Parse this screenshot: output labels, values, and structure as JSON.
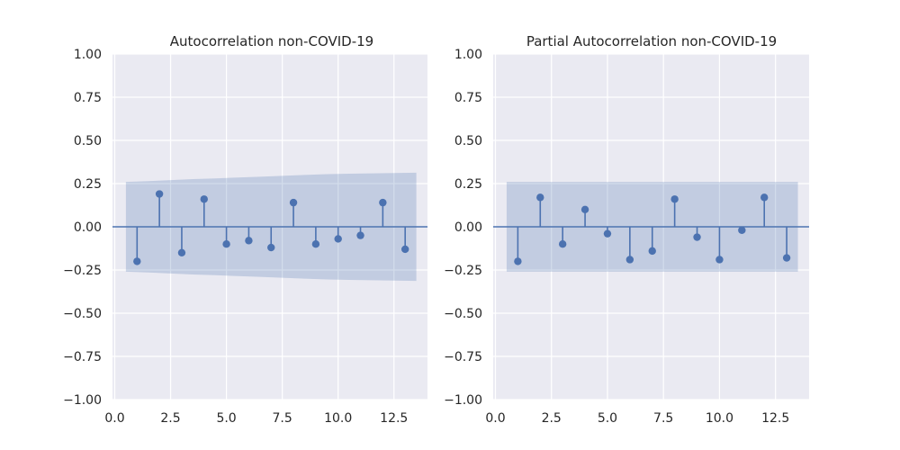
{
  "chart_data": [
    {
      "type": "stem",
      "title": "Autocorrelation non-COVID-19",
      "xlim": [
        -0.1,
        14.0
      ],
      "ylim": [
        -1.0,
        1.0
      ],
      "xticks": [
        0.0,
        2.5,
        5.0,
        7.5,
        10.0,
        12.5
      ],
      "xtick_labels": [
        "0.0",
        "2.5",
        "5.0",
        "7.5",
        "10.0",
        "12.5"
      ],
      "yticks": [
        1.0,
        0.75,
        0.5,
        0.25,
        0.0,
        -0.25,
        -0.5,
        -0.75,
        -1.0
      ],
      "ytick_labels": [
        "1.00",
        "0.75",
        "0.50",
        "0.25",
        "0.00",
        "−0.25",
        "−0.50",
        "−0.75",
        "−1.00"
      ],
      "grid": true,
      "x": [
        1,
        2,
        3,
        4,
        5,
        6,
        7,
        8,
        9,
        10,
        11,
        12,
        13
      ],
      "values": [
        -0.2,
        0.19,
        -0.15,
        0.16,
        -0.1,
        -0.08,
        -0.12,
        0.14,
        -0.1,
        -0.07,
        -0.05,
        0.14,
        -0.13
      ],
      "confidence_band": {
        "x": [
          0.5,
          1.5,
          2.5,
          3.5,
          4.5,
          5.5,
          6.5,
          7.5,
          8.5,
          9.5,
          10.5,
          11.5,
          12.5,
          13.5
        ],
        "upper": [
          0.26,
          0.264,
          0.27,
          0.276,
          0.28,
          0.285,
          0.29,
          0.295,
          0.3,
          0.305,
          0.307,
          0.309,
          0.311,
          0.313
        ],
        "lower": [
          -0.26,
          -0.264,
          -0.27,
          -0.276,
          -0.28,
          -0.285,
          -0.29,
          -0.295,
          -0.3,
          -0.305,
          -0.307,
          -0.309,
          -0.311,
          -0.313
        ]
      }
    },
    {
      "type": "stem",
      "title": "Partial Autocorrelation non-COVID-19",
      "xlim": [
        -0.1,
        14.0
      ],
      "ylim": [
        -1.0,
        1.0
      ],
      "xticks": [
        0.0,
        2.5,
        5.0,
        7.5,
        10.0,
        12.5
      ],
      "xtick_labels": [
        "0.0",
        "2.5",
        "5.0",
        "7.5",
        "10.0",
        "12.5"
      ],
      "yticks": [
        1.0,
        0.75,
        0.5,
        0.25,
        0.0,
        -0.25,
        -0.5,
        -0.75,
        -1.0
      ],
      "ytick_labels": [
        "1.00",
        "0.75",
        "0.50",
        "0.25",
        "0.00",
        "−0.25",
        "−0.50",
        "−0.75",
        "−1.00"
      ],
      "grid": true,
      "x": [
        1,
        2,
        3,
        4,
        5,
        6,
        7,
        8,
        9,
        10,
        11,
        12,
        13
      ],
      "values": [
        -0.2,
        0.17,
        -0.1,
        0.1,
        -0.04,
        -0.19,
        -0.14,
        0.16,
        -0.06,
        -0.19,
        -0.02,
        0.17,
        -0.18
      ],
      "confidence_band": {
        "x": [
          0.5,
          13.5
        ],
        "upper": [
          0.26,
          0.26
        ],
        "lower": [
          -0.26,
          -0.26
        ]
      }
    }
  ],
  "colors": {
    "panel_bg": "#eaeaf2",
    "grid": "#ffffff",
    "series": "#4c72b0",
    "band": "#4c72b0",
    "text": "#262626"
  }
}
